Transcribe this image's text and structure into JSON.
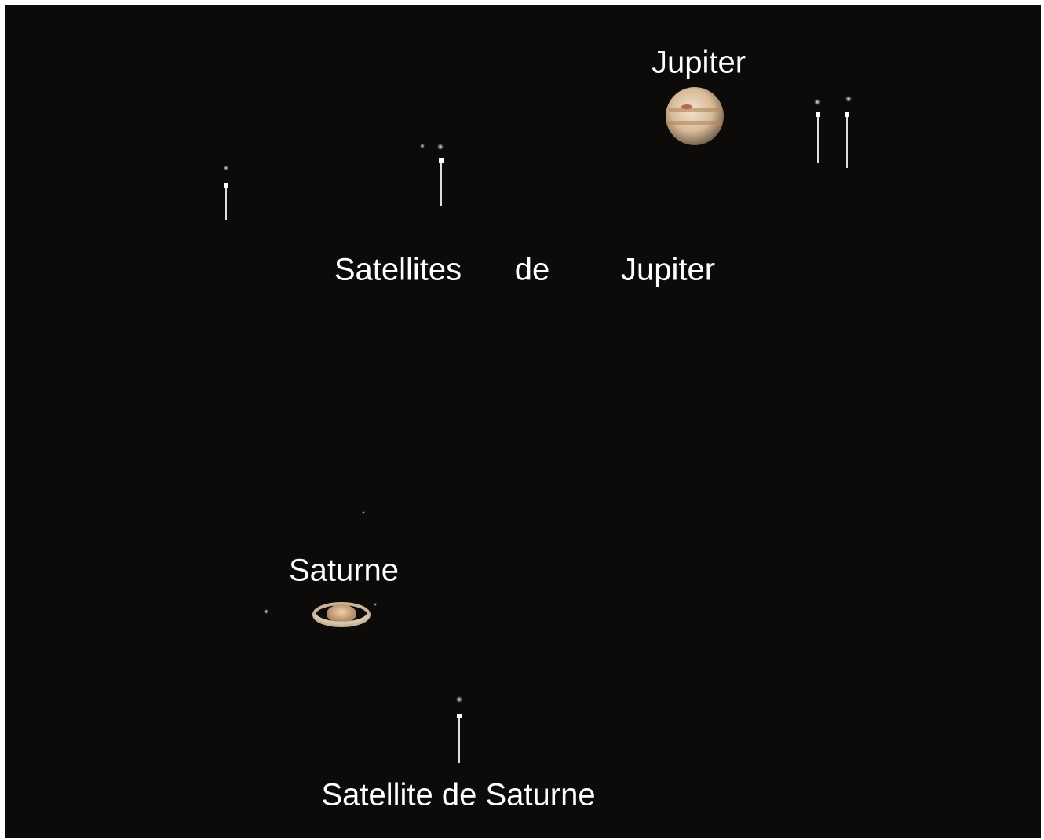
{
  "labels": {
    "jupiter": "Jupiter",
    "satellites_jupiter": [
      "Satellites",
      "de",
      "Jupiter"
    ],
    "saturne": "Saturne",
    "satellite_saturne": "Satellite de Saturne"
  }
}
